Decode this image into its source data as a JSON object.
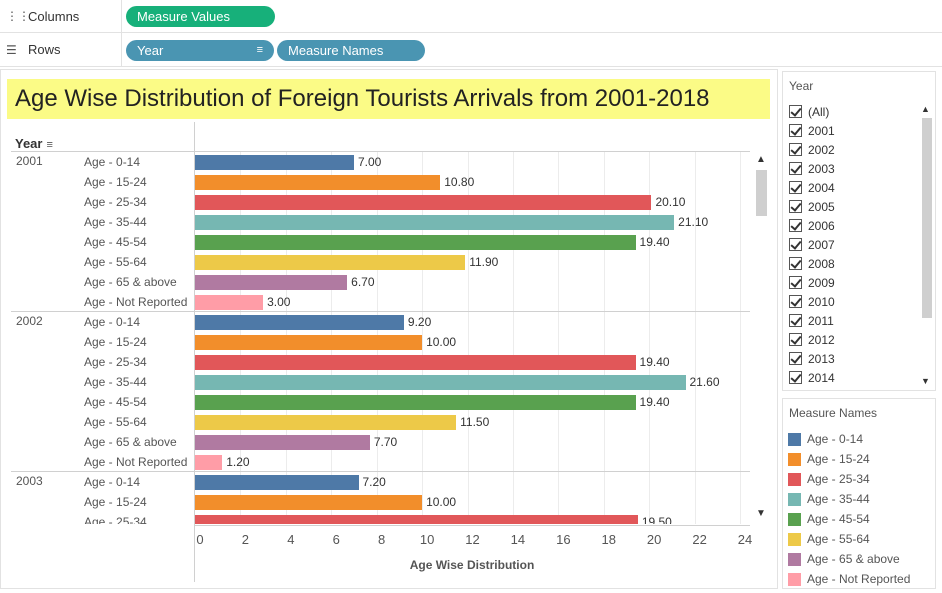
{
  "shelves": {
    "columns_label": "Columns",
    "rows_label": "Rows",
    "columns_pills": [
      "Measure Values"
    ],
    "rows_pills": [
      "Year",
      "Measure Names"
    ]
  },
  "chart_title": "Age Wise Distribution of Foreign Tourists Arrivals from 2001-2018",
  "year_header": "Year",
  "axis_title": "Age Wise Distribution",
  "colors": {
    "Age - 0-14": "#4e79a7",
    "Age - 15-24": "#f28e2b",
    "Age - 25-34": "#e15759",
    "Age - 35-44": "#76b7b2",
    "Age - 45-54": "#59a14f",
    "Age - 55-64": "#edc948",
    "Age - 65 & above": "#b07aa1",
    "Age - Not Reported": "#ff9da7"
  },
  "chart_data": {
    "type": "bar",
    "orientation": "horizontal",
    "xlabel": "Age Wise Distribution",
    "xlim": [
      0,
      24
    ],
    "xticks": [
      0,
      2,
      4,
      6,
      8,
      10,
      12,
      14,
      16,
      18,
      20,
      22,
      24
    ],
    "categories": [
      "Age - 0-14",
      "Age - 15-24",
      "Age - 25-34",
      "Age - 35-44",
      "Age - 45-54",
      "Age - 55-64",
      "Age - 65 & above",
      "Age - Not Reported"
    ],
    "groups": [
      {
        "year": "2001",
        "values": [
          7.0,
          10.8,
          20.1,
          21.1,
          19.4,
          11.9,
          6.7,
          3.0
        ],
        "labels": [
          "7.00",
          "10.80",
          "20.10",
          "21.10",
          "19.40",
          "11.90",
          "6.70",
          "3.00"
        ]
      },
      {
        "year": "2002",
        "values": [
          9.2,
          10.0,
          19.4,
          21.6,
          19.4,
          11.5,
          7.7,
          1.2
        ],
        "labels": [
          "9.20",
          "10.00",
          "19.40",
          "21.60",
          "19.40",
          "11.50",
          "7.70",
          "1.20"
        ]
      },
      {
        "year": "2003",
        "values": [
          7.2,
          10.0,
          19.5
        ],
        "labels": [
          "7.20",
          "10.00",
          "19.50"
        ]
      }
    ]
  },
  "year_filter": {
    "title": "Year",
    "items": [
      "(All)",
      "2001",
      "2002",
      "2003",
      "2004",
      "2005",
      "2006",
      "2007",
      "2008",
      "2009",
      "2010",
      "2011",
      "2012",
      "2013",
      "2014"
    ]
  },
  "legend": {
    "title": "Measure Names",
    "items": [
      "Age - 0-14",
      "Age - 15-24",
      "Age - 25-34",
      "Age - 35-44",
      "Age - 45-54",
      "Age - 55-64",
      "Age - 65 & above",
      "Age - Not Reported"
    ]
  }
}
